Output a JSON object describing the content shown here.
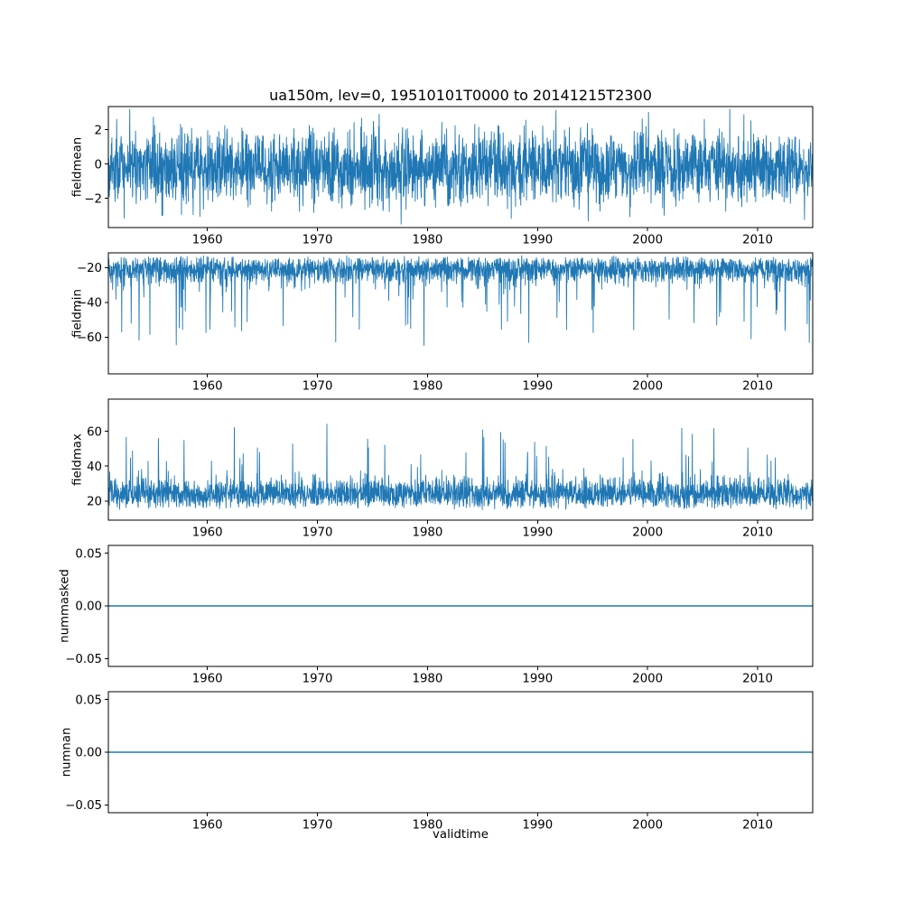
{
  "figure": {
    "title": "ua150m, lev=0, 19510101T0000 to 20141215T2300",
    "xlabel": "validtime",
    "background_color": "#ffffff",
    "line_color": "#1f77b4",
    "axis_color": "#000000",
    "x_start": 1951.0,
    "x_end": 2014.96,
    "xlim": [
      1951,
      2015
    ],
    "xticks": [
      1960,
      1970,
      1980,
      1990,
      2000,
      2010
    ],
    "xtick_labels": [
      "1960",
      "1970",
      "1980",
      "1990",
      "2000",
      "2010"
    ]
  },
  "chart_data": [
    {
      "type": "line",
      "name": "fieldmean",
      "ylabel": "fieldmean",
      "ylim": [
        -3.7,
        3.35
      ],
      "yticks": [
        {
          "v": 2,
          "label": "2"
        },
        {
          "v": 0,
          "label": "0"
        },
        {
          "v": -2,
          "label": "−2"
        }
      ],
      "series": {
        "kind": "gaussian_noise",
        "mean": -0.2,
        "std": 1.05,
        "observed_min": -3.5,
        "observed_max": 3.2,
        "clip": [
          -3.5,
          3.2
        ],
        "seed": 42,
        "points": 2800
      }
    },
    {
      "type": "line",
      "name": "fieldmin",
      "ylabel": "fieldmin",
      "ylim": [
        -81,
        -11.5
      ],
      "yticks": [
        {
          "v": -20,
          "label": "−20"
        },
        {
          "v": -40,
          "label": "−40"
        },
        {
          "v": -60,
          "label": "−60"
        }
      ],
      "series": {
        "kind": "band_spikes",
        "base": -13,
        "direction": -1,
        "gauss_scale": 5,
        "uniform_scale": 8,
        "spike_prob": 0.035,
        "spike_scale": 42,
        "observed_min": -78,
        "observed_max": -13,
        "clip": [
          -78,
          -13
        ],
        "seed": 7,
        "points": 2800
      }
    },
    {
      "type": "line",
      "name": "fieldmax",
      "ylabel": "fieldmax",
      "ylim": [
        9,
        78.5
      ],
      "yticks": [
        {
          "v": 60,
          "label": "60"
        },
        {
          "v": 40,
          "label": "40"
        },
        {
          "v": 20,
          "label": "20"
        }
      ],
      "series": {
        "kind": "band_spikes",
        "base": 15,
        "direction": 1,
        "gauss_scale": 5,
        "uniform_scale": 10,
        "spike_prob": 0.03,
        "spike_scale": 35,
        "observed_min": 12,
        "observed_max": 75,
        "clip": [
          12,
          75
        ],
        "seed": 13,
        "points": 2800
      }
    },
    {
      "type": "line",
      "name": "nummasked",
      "ylabel": "nummasked",
      "ylim": [
        -0.0575,
        0.0575
      ],
      "yticks": [
        {
          "v": 0.05,
          "label": "0.05"
        },
        {
          "v": 0,
          "label": "0.00"
        },
        {
          "v": -0.05,
          "label": "−0.05"
        }
      ],
      "series": {
        "kind": "constant",
        "value": 0,
        "points": 2
      }
    },
    {
      "type": "line",
      "name": "numnan",
      "ylabel": "numnan",
      "ylim": [
        -0.0575,
        0.0575
      ],
      "yticks": [
        {
          "v": 0.05,
          "label": "0.05"
        },
        {
          "v": 0,
          "label": "0.00"
        },
        {
          "v": -0.05,
          "label": "−0.05"
        }
      ],
      "series": {
        "kind": "constant",
        "value": 0,
        "points": 2
      }
    }
  ]
}
